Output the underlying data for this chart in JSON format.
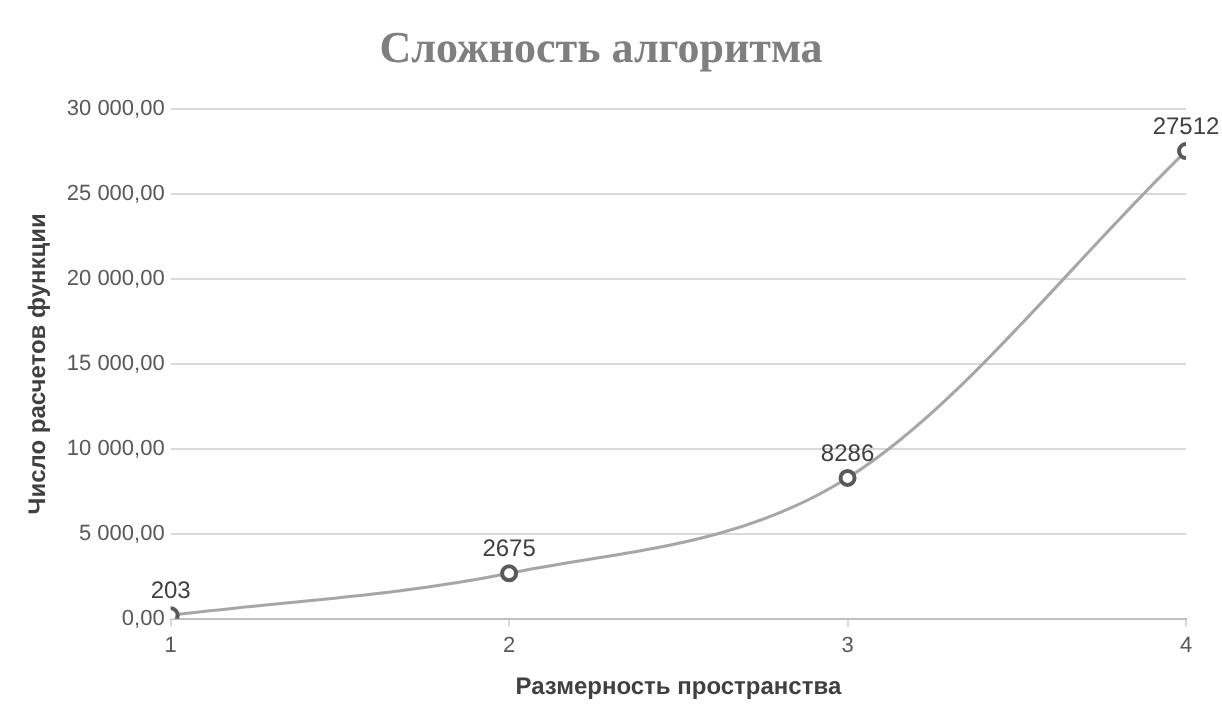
{
  "chart_data": {
    "type": "line",
    "title": "Сложность алгоритма",
    "xlabel": "Размерность пространства",
    "ylabel": "Число расчетов функции",
    "x": [
      1,
      2,
      3,
      4
    ],
    "series": [
      {
        "color": "#a6a6a6",
        "values": [
          203,
          2675,
          8286,
          27512
        ]
      }
    ],
    "xlim": [
      1,
      4
    ],
    "xticks": [
      1,
      2,
      3,
      4
    ],
    "ylim": [
      0,
      30000
    ],
    "yticks": [
      {
        "value": 0,
        "label": "0,00"
      },
      {
        "value": 5000,
        "label": "5 000,00"
      },
      {
        "value": 10000,
        "label": "10 000,00"
      },
      {
        "value": 15000,
        "label": "15 000,00"
      },
      {
        "value": 20000,
        "label": "20 000,00"
      },
      {
        "value": 25000,
        "label": "25 000,00"
      },
      {
        "value": 30000,
        "label": "30 000,00"
      }
    ],
    "grid": "y",
    "legend": false,
    "marker": "circle",
    "line_style": "solid",
    "data_labels": true
  }
}
